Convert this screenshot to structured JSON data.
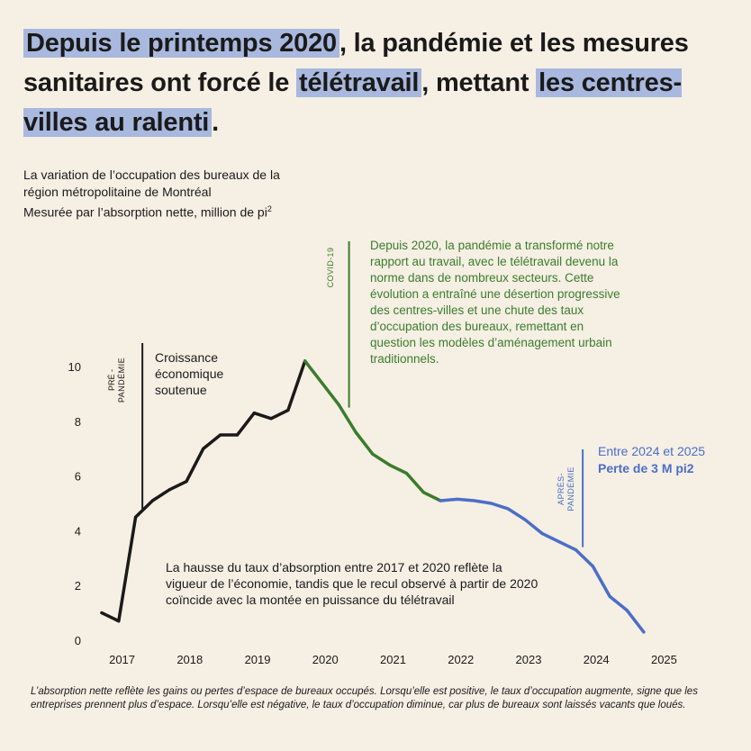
{
  "headline": {
    "part1": "Depuis le printemps 2020",
    "part2": ", la pandémie et les mesures sanitaires ont forcé le ",
    "part3": "télétravail",
    "part4": ", mettant ",
    "part5": "les centres-villes au ralenti",
    "part6": "."
  },
  "subtitle": {
    "line1": "La variation de l’occupation des bureaux de la",
    "line2": "région métropolitaine de Montréal",
    "line3": "Mesurée par l’absorption nette, million de pi",
    "line3_sup": "2"
  },
  "footnote": "L’absorption nette reflète les gains ou pertes d’espace de bureaux occupés. Lorsqu’elle est positive, le taux d’occupation augmente, signe que les entreprises prennent plus d’espace. Lorsqu’elle est négative, le taux d’occupation diminue, car plus de bureaux sont laissés vacants que loués.",
  "colors": {
    "background": "#f6efe4",
    "highlight": "#a9b8de",
    "pre": "#1a1a1a",
    "covid": "#3a7d2c",
    "post": "#4a6fc7"
  },
  "annotations": {
    "pre_marker": {
      "label_line1": "PRÉ -",
      "label_line2": "PANDÉMIE",
      "x": 2017.3
    },
    "pre_text": [
      "Croissance",
      "économique",
      "soutenue"
    ],
    "covid_marker": {
      "label": "COVID-19",
      "x": 2020.35
    },
    "covid_text": [
      "Depuis 2020, la pandémie a transformé notre",
      "rapport au travail, avec le télétravail devenu la",
      "norme dans de nombreux secteurs. Cette",
      "évolution a entraîné une désertion progressive",
      "des centres-villes et une chute des taux",
      "d’occupation des bureaux, remettant en",
      "question les modèles d’aménagement urbain",
      "traditionnels."
    ],
    "post_marker": {
      "label_line1": "APRÈS-",
      "label_line2": "PANDÉMIE",
      "x": 2023.8
    },
    "post_text_line1": "Entre  2024 et 2025",
    "post_text_line2": "Perte de 3 M pi2",
    "bottom_text": [
      "La hausse du taux d’absorption entre 2017 et 2020 reflète la",
      "vigueur de l’économie, tandis que le recul observé à partir de 2020",
      "coïncide avec la montée en puissance du télétravail"
    ]
  },
  "chart_data": {
    "type": "line",
    "title": "La variation de l’occupation des bureaux de la région métropolitaine de Montréal",
    "ylabel": "Mesurée par l’absorption nette, million de pi²",
    "xlabel": "",
    "x_ticks": [
      2017,
      2018,
      2019,
      2020,
      2021,
      2022,
      2023,
      2024,
      2025
    ],
    "y_ticks": [
      0,
      2,
      4,
      6,
      8,
      10
    ],
    "xlim": [
      2016.7,
      2025.3
    ],
    "ylim": [
      0,
      10.5
    ],
    "grid": false,
    "series": [
      {
        "name": "Pré-pandémie",
        "color": "#1a1a1a",
        "x": [
          2016.7,
          2016.95,
          2017.2,
          2017.45,
          2017.7,
          2017.95,
          2018.2,
          2018.45,
          2018.7,
          2018.95,
          2019.2,
          2019.45,
          2019.7
        ],
        "y": [
          1.0,
          0.7,
          4.5,
          5.1,
          5.5,
          5.8,
          7.0,
          7.5,
          7.5,
          8.3,
          8.1,
          8.4,
          10.2
        ]
      },
      {
        "name": "COVID-19",
        "color": "#3a7d2c",
        "x": [
          2019.7,
          2019.95,
          2020.2,
          2020.45,
          2020.7,
          2020.95,
          2021.2,
          2021.45,
          2021.7
        ],
        "y": [
          10.2,
          9.4,
          8.6,
          7.6,
          6.8,
          6.4,
          6.1,
          5.4,
          5.1
        ]
      },
      {
        "name": "Après-pandémie",
        "color": "#4a6fc7",
        "x": [
          2021.7,
          2021.95,
          2022.2,
          2022.45,
          2022.7,
          2022.95,
          2023.2,
          2023.45,
          2023.7,
          2023.95,
          2024.2,
          2024.45,
          2024.7
        ],
        "y": [
          5.1,
          5.15,
          5.1,
          5.0,
          4.8,
          4.4,
          3.9,
          3.6,
          3.3,
          2.7,
          1.6,
          1.1,
          0.3
        ]
      }
    ]
  }
}
